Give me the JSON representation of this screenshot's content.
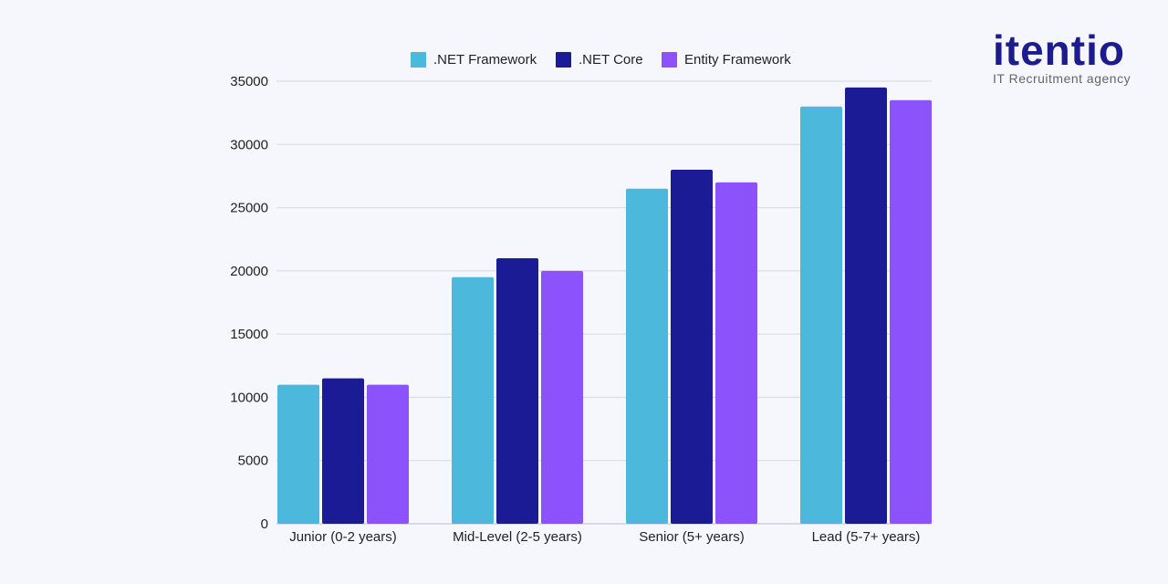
{
  "chart_data": {
    "type": "bar",
    "categories": [
      "Junior (0-2 years)",
      "Mid-Level (2-5 years)",
      "Senior (5+ years)",
      "Lead (5-7+ years)"
    ],
    "series": [
      {
        "name": ".NET Framework",
        "color": "#4cb8dc",
        "values": [
          11000,
          19500,
          26500,
          33000
        ]
      },
      {
        "name": ".NET Core",
        "color": "#1b1b96",
        "values": [
          11500,
          21000,
          28000,
          34500
        ]
      },
      {
        "name": "Entity Framework",
        "color": "#8c52fc",
        "values": [
          11000,
          20000,
          27000,
          33500
        ]
      }
    ],
    "ylim": [
      0,
      35000
    ],
    "yticks": [
      0,
      5000,
      10000,
      15000,
      20000,
      25000,
      30000,
      35000
    ],
    "grid": true,
    "legend": "top-center"
  },
  "logo": {
    "word": "itentio",
    "tagline": "IT Recruitment agency"
  }
}
